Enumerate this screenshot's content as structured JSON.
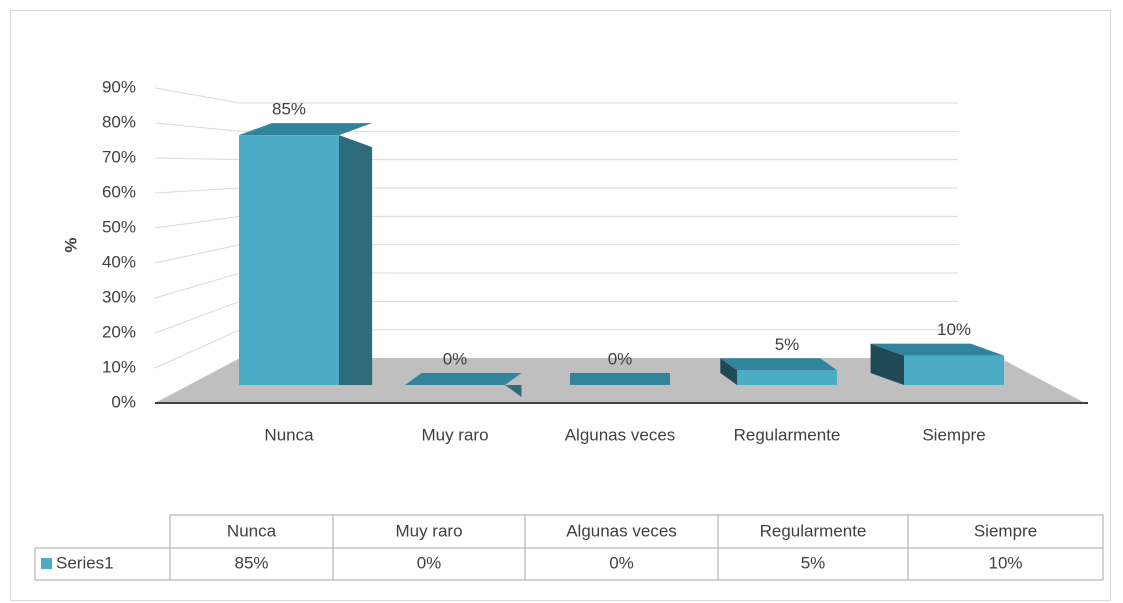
{
  "chart_data": {
    "type": "bar3d",
    "ylabel": "%",
    "categories": [
      "Nunca",
      "Muy raro",
      "Algunas veces",
      "Regularmente",
      "Siempre"
    ],
    "series": [
      {
        "name": "Series1",
        "color": "#4bacc6",
        "values": [
          85,
          0,
          0,
          5,
          10
        ],
        "value_labels": [
          "85%",
          "0%",
          "0%",
          "5%",
          "10%"
        ]
      }
    ],
    "ylim": [
      0,
      90
    ],
    "yticks": [
      {
        "value": 0,
        "label": "0%"
      },
      {
        "value": 10,
        "label": "10%"
      },
      {
        "value": 20,
        "label": "20%"
      },
      {
        "value": 30,
        "label": "30%"
      },
      {
        "value": 40,
        "label": "40%"
      },
      {
        "value": 50,
        "label": "50%"
      },
      {
        "value": 60,
        "label": "60%"
      },
      {
        "value": 70,
        "label": "70%"
      },
      {
        "value": 80,
        "label": "80%"
      },
      {
        "value": 90,
        "label": "90%"
      }
    ],
    "grid": true,
    "data_table": true
  }
}
